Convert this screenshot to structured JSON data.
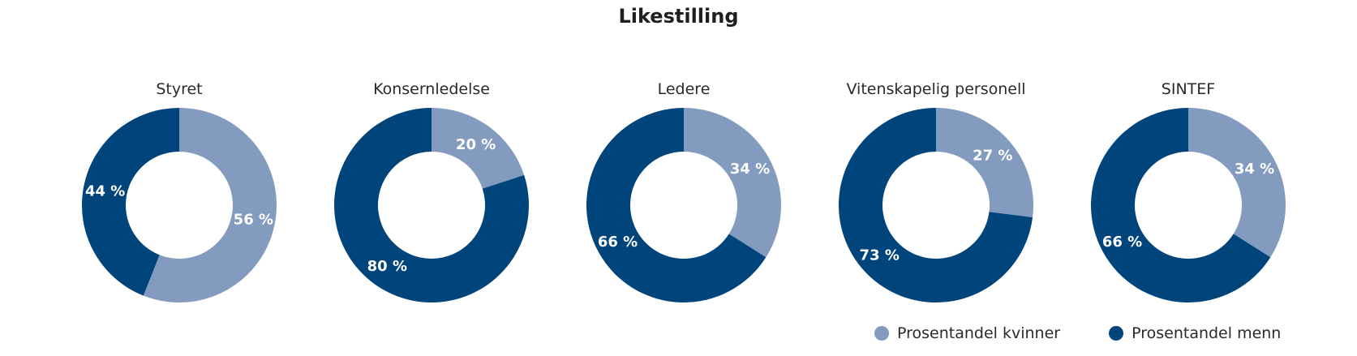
{
  "title": "Likestilling",
  "colors": {
    "women": "#849bc0",
    "men": "#00447c"
  },
  "chart_data": {
    "type": "pie",
    "title": "Likestilling",
    "legend": [
      "Prosentandel kvinner",
      "Prosentandel menn"
    ],
    "legend_position": "bottom-right",
    "unit": "%",
    "panels": [
      {
        "name": "Styret",
        "women": 56,
        "men": 44
      },
      {
        "name": "Konsernledelse",
        "women": 20,
        "men": 80
      },
      {
        "name": "Ledere",
        "women": 34,
        "men": 66
      },
      {
        "name": "Vitenskapelig personell",
        "women": 27,
        "men": 73
      },
      {
        "name": "SINTEF",
        "women": 34,
        "men": 66
      }
    ]
  }
}
